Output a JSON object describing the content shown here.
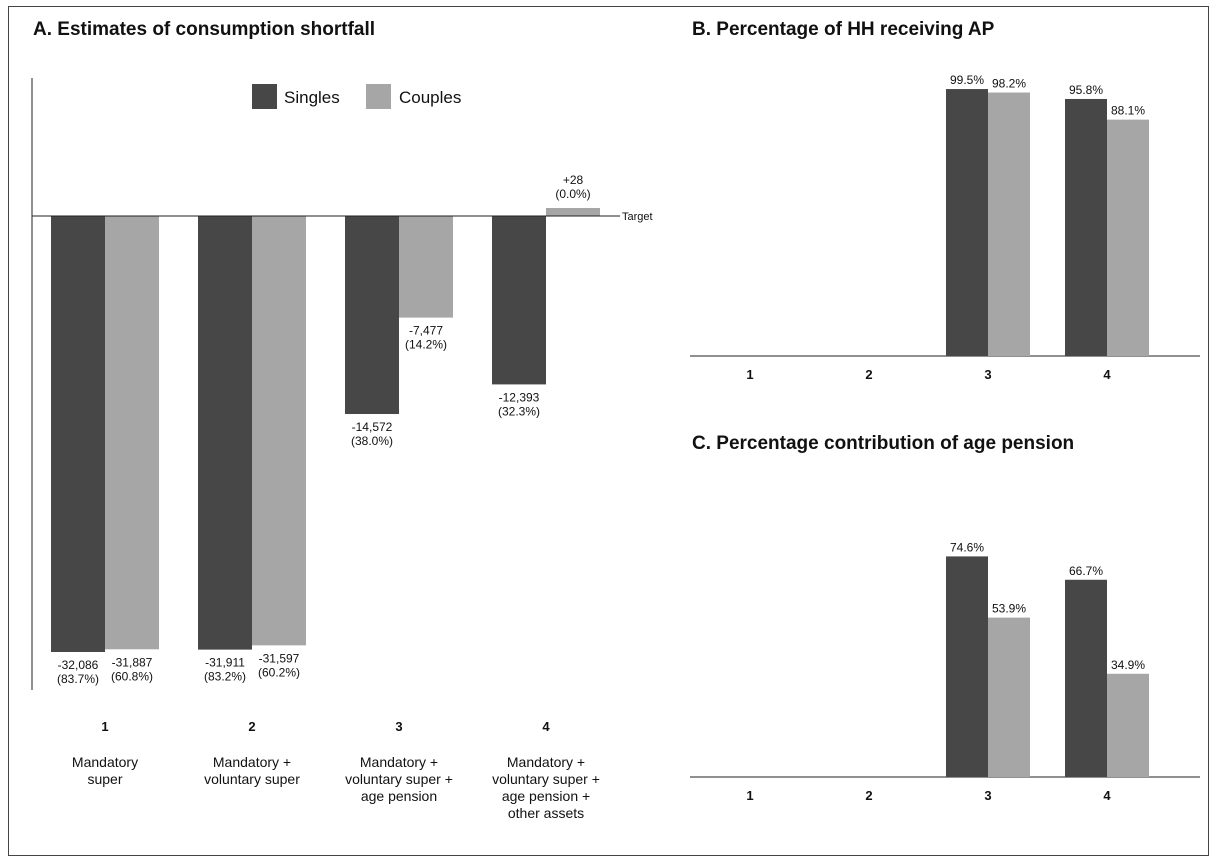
{
  "colors": {
    "singles": "#474747",
    "couples": "#a6a6a6",
    "axis": "#222222"
  },
  "chart_data": [
    {
      "id": "A",
      "type": "bar",
      "title": "A. Estimates of consumption shortfall",
      "categories": [
        "1",
        "2",
        "3",
        "4"
      ],
      "category_descriptions": [
        [
          "Mandatory",
          "super"
        ],
        [
          "Mandatory +",
          "voluntary super"
        ],
        [
          "Mandatory +",
          "voluntary super +",
          "age pension"
        ],
        [
          "Mandatory +",
          "voluntary super +",
          "age pension +",
          "other assets"
        ]
      ],
      "series": [
        {
          "name": "Singles",
          "values": [
            -32086,
            -31911,
            -14572,
            -12393
          ],
          "labels": [
            [
              "-32,086",
              "(83.7%)"
            ],
            [
              "-31,911",
              "(83.2%)"
            ],
            [
              "-14,572",
              "(38.0%)"
            ],
            [
              "-12,393",
              "(32.3%)"
            ]
          ]
        },
        {
          "name": "Couples",
          "values": [
            -31887,
            -31597,
            -7477,
            28
          ],
          "labels": [
            [
              "-31,887",
              "(60.8%)"
            ],
            [
              "-31,597",
              "(60.2%)"
            ],
            [
              "-7,477",
              "(14.2%)"
            ],
            [
              "+28",
              "(0.0%)"
            ]
          ]
        }
      ],
      "reference_line": {
        "value": 0,
        "label": "Target"
      },
      "legend": {
        "position": "top",
        "entries": [
          "Singles",
          "Couples"
        ]
      },
      "grid": false
    },
    {
      "id": "B",
      "type": "bar",
      "title": "B. Percentage of HH receiving AP",
      "categories": [
        "1",
        "2",
        "3",
        "4"
      ],
      "series": [
        {
          "name": "Singles",
          "values": [
            null,
            null,
            99.5,
            95.8
          ],
          "labels": [
            "",
            "",
            "99.5%",
            "95.8%"
          ]
        },
        {
          "name": "Couples",
          "values": [
            null,
            null,
            98.2,
            88.1
          ],
          "labels": [
            "",
            "",
            "98.2%",
            "88.1%"
          ]
        }
      ],
      "ylim": [
        0,
        100
      ],
      "grid": false
    },
    {
      "id": "C",
      "type": "bar",
      "title": "C. Percentage contribution of age pension",
      "categories": [
        "1",
        "2",
        "3",
        "4"
      ],
      "series": [
        {
          "name": "Singles",
          "values": [
            null,
            null,
            74.6,
            66.7
          ],
          "labels": [
            "",
            "",
            "74.6%",
            "66.7%"
          ]
        },
        {
          "name": "Couples",
          "values": [
            null,
            null,
            53.9,
            34.9
          ],
          "labels": [
            "",
            "",
            "53.9%",
            "34.9%"
          ]
        }
      ],
      "ylim": [
        0,
        100
      ],
      "grid": false
    }
  ]
}
